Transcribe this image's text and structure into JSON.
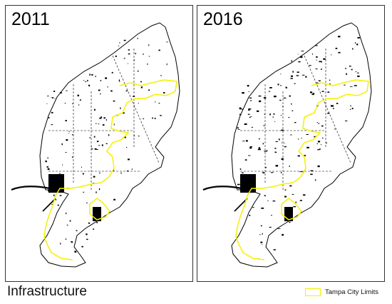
{
  "map": {
    "title": "Infrastructure",
    "panels": [
      {
        "year": "2011"
      },
      {
        "year": "2016"
      }
    ],
    "legend": {
      "label": "Tampa City Limits",
      "color": "#f5f000"
    },
    "colors": {
      "infrastructure": "#000000",
      "boundary": "#000000",
      "city_limits": "#f5f000"
    }
  }
}
